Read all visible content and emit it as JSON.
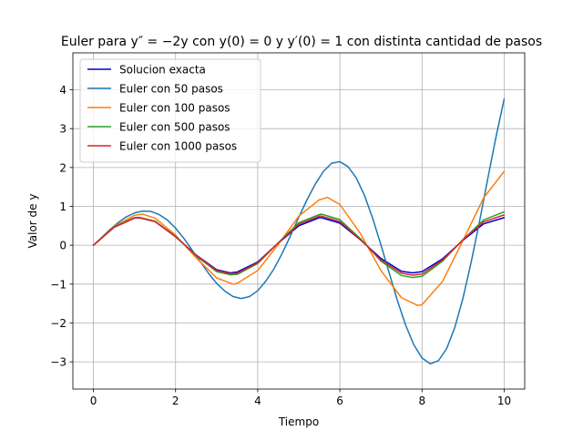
{
  "chart_data": {
    "type": "line",
    "title": "Euler para y″ = −2y con y(0) = 0 y y′(0) = 1 con distinta cantidad de pasos",
    "xlabel": "Tiempo",
    "ylabel": "Valor de y",
    "xlim": [
      -0.5,
      10.5
    ],
    "ylim": [
      -3.7,
      4.95
    ],
    "xticks": [
      0,
      2,
      4,
      6,
      8,
      10
    ],
    "yticks": [
      -3,
      -2,
      -1,
      0,
      1,
      2,
      3,
      4
    ],
    "xtick_labels": [
      "0",
      "2",
      "4",
      "6",
      "8",
      "10"
    ],
    "ytick_labels": [
      "−3",
      "−2",
      "−1",
      "0",
      "1",
      "2",
      "3",
      "4"
    ],
    "grid": true,
    "legend_position": "upper-left",
    "series": [
      {
        "name": "Solucion exacta",
        "color": "#0000cc",
        "x": [
          0,
          0.5,
          1.0,
          1.11,
          1.5,
          2.0,
          2.5,
          3.0,
          3.33,
          3.5,
          4.0,
          4.44,
          5.0,
          5.5,
          5.55,
          6.0,
          6.5,
          7.0,
          7.5,
          7.77,
          8.0,
          8.5,
          9.0,
          9.5,
          10.0
        ],
        "y": [
          0,
          0.46,
          0.7,
          0.71,
          0.61,
          0.22,
          -0.25,
          -0.63,
          -0.71,
          -0.69,
          -0.43,
          0.0,
          0.5,
          0.71,
          0.71,
          0.57,
          0.14,
          -0.34,
          -0.67,
          -0.71,
          -0.68,
          -0.35,
          0.13,
          0.55,
          0.71
        ]
      },
      {
        "name": "Euler con 50 pasos",
        "color": "#1f77b4",
        "x": [
          0,
          0.2,
          0.4,
          0.6,
          0.8,
          1.0,
          1.2,
          1.4,
          1.6,
          1.8,
          2.0,
          2.2,
          2.4,
          2.6,
          2.8,
          3.0,
          3.2,
          3.4,
          3.6,
          3.8,
          4.0,
          4.2,
          4.4,
          4.6,
          4.8,
          5.0,
          5.2,
          5.4,
          5.6,
          5.8,
          6.0,
          6.2,
          6.4,
          6.6,
          6.8,
          7.0,
          7.2,
          7.4,
          7.6,
          7.8,
          8.0,
          8.2,
          8.4,
          8.6,
          8.8,
          9.0,
          9.2,
          9.4,
          9.6,
          9.8,
          10.0
        ],
        "y": [
          0,
          0.2,
          0.4,
          0.58,
          0.73,
          0.83,
          0.88,
          0.87,
          0.79,
          0.65,
          0.44,
          0.18,
          -0.12,
          -0.42,
          -0.72,
          -0.98,
          -1.18,
          -1.32,
          -1.37,
          -1.32,
          -1.17,
          -0.92,
          -0.6,
          -0.2,
          0.25,
          0.72,
          1.17,
          1.57,
          1.9,
          2.11,
          2.15,
          2.02,
          1.73,
          1.28,
          0.69,
          0.01,
          -0.71,
          -1.42,
          -2.05,
          -2.56,
          -2.9,
          -3.05,
          -2.97,
          -2.66,
          -2.11,
          -1.35,
          -0.42,
          0.61,
          1.71,
          2.78,
          3.76
        ]
      },
      {
        "name": "Euler con 100 pasos",
        "color": "#ff7f0e",
        "x": [
          0,
          0.5,
          1.0,
          1.2,
          1.5,
          2.0,
          2.5,
          3.0,
          3.4,
          3.5,
          4.0,
          4.5,
          5.0,
          5.5,
          5.7,
          6.0,
          6.5,
          7.0,
          7.5,
          7.9,
          8.0,
          8.5,
          9.0,
          9.5,
          10.0
        ],
        "y": [
          0,
          0.48,
          0.77,
          0.8,
          0.7,
          0.26,
          -0.32,
          -0.84,
          -1.0,
          -0.98,
          -0.65,
          0.02,
          0.75,
          1.17,
          1.23,
          1.05,
          0.3,
          -0.65,
          -1.35,
          -1.55,
          -1.53,
          -0.93,
          0.13,
          1.22,
          1.9
        ]
      },
      {
        "name": "Euler con 500 pasos",
        "color": "#2ca02c",
        "x": [
          0,
          0.5,
          1.0,
          1.11,
          1.5,
          2.0,
          2.5,
          3.0,
          3.33,
          3.5,
          4.0,
          4.44,
          5.0,
          5.5,
          5.55,
          6.0,
          6.5,
          7.0,
          7.5,
          7.77,
          8.0,
          8.5,
          9.0,
          9.5,
          10.0
        ],
        "y": [
          0,
          0.47,
          0.71,
          0.72,
          0.62,
          0.23,
          -0.27,
          -0.68,
          -0.76,
          -0.75,
          -0.47,
          0.0,
          0.58,
          0.79,
          0.8,
          0.66,
          0.17,
          -0.41,
          -0.78,
          -0.83,
          -0.8,
          -0.41,
          0.15,
          0.65,
          0.86
        ]
      },
      {
        "name": "Euler con 1000 pasos",
        "color": "#d62728",
        "x": [
          0,
          0.5,
          1.0,
          1.11,
          1.5,
          2.0,
          2.5,
          3.0,
          3.33,
          3.5,
          4.0,
          4.44,
          5.0,
          5.5,
          5.55,
          6.0,
          6.5,
          7.0,
          7.5,
          7.77,
          8.0,
          8.5,
          9.0,
          9.5,
          10.0
        ],
        "y": [
          0,
          0.46,
          0.7,
          0.71,
          0.61,
          0.22,
          -0.26,
          -0.65,
          -0.73,
          -0.72,
          -0.45,
          0.0,
          0.54,
          0.75,
          0.75,
          0.61,
          0.15,
          -0.38,
          -0.72,
          -0.77,
          -0.74,
          -0.38,
          0.14,
          0.6,
          0.78
        ]
      }
    ]
  }
}
